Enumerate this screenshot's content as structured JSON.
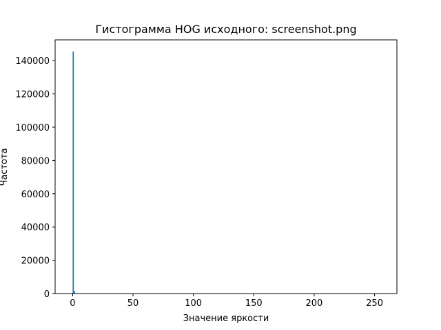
{
  "chart_data": {
    "type": "bar",
    "title": "Гистограмма HOG исходного: screenshot.png",
    "xlabel": "Значение яркости",
    "ylabel": "Частота",
    "xlim": [
      -14.5,
      268.5
    ],
    "ylim": [
      0,
      152500
    ],
    "xticks": [
      0,
      50,
      100,
      150,
      200,
      250
    ],
    "yticks": [
      0,
      20000,
      40000,
      60000,
      80000,
      100000,
      120000,
      140000
    ],
    "grid": false,
    "bar_color": "#1f77b4",
    "bars": [
      {
        "x": 0,
        "value": 145500
      },
      {
        "x": 1,
        "value": 1500
      }
    ]
  }
}
